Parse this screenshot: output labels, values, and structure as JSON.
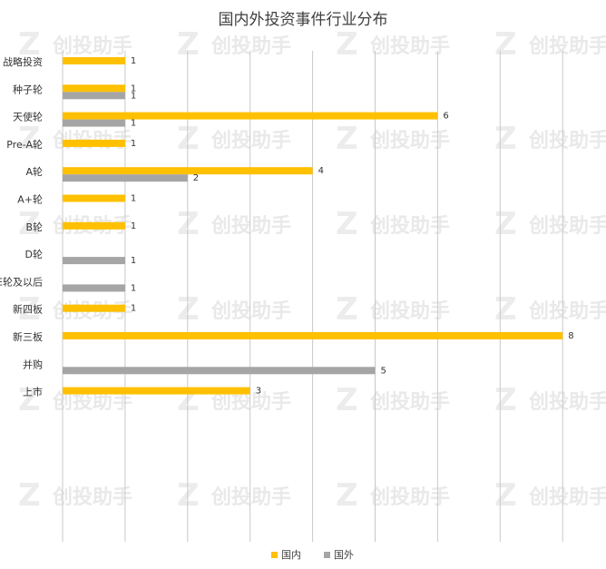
{
  "chart_data": {
    "type": "bar",
    "orientation": "horizontal",
    "title": "国内外投资事件行业分布",
    "categories": [
      "战略投资",
      "种子轮",
      "天使轮",
      "Pre-A轮",
      "A轮",
      "A+轮",
      "B轮",
      "D轮",
      "E轮及以后",
      "新四板",
      "新三板",
      "并购",
      "上市"
    ],
    "series": [
      {
        "name": "国内",
        "color": "#FFC000",
        "values": [
          1,
          1,
          6,
          1,
          4,
          1,
          1,
          null,
          null,
          1,
          8,
          null,
          3
        ]
      },
      {
        "name": "国外",
        "color": "#A5A5A5",
        "values": [
          null,
          1,
          1,
          null,
          2,
          null,
          null,
          1,
          1,
          null,
          null,
          5,
          null
        ]
      }
    ],
    "xlim": [
      0,
      8
    ],
    "grid": true,
    "legend_position": "bottom"
  },
  "watermark": "创投助手"
}
